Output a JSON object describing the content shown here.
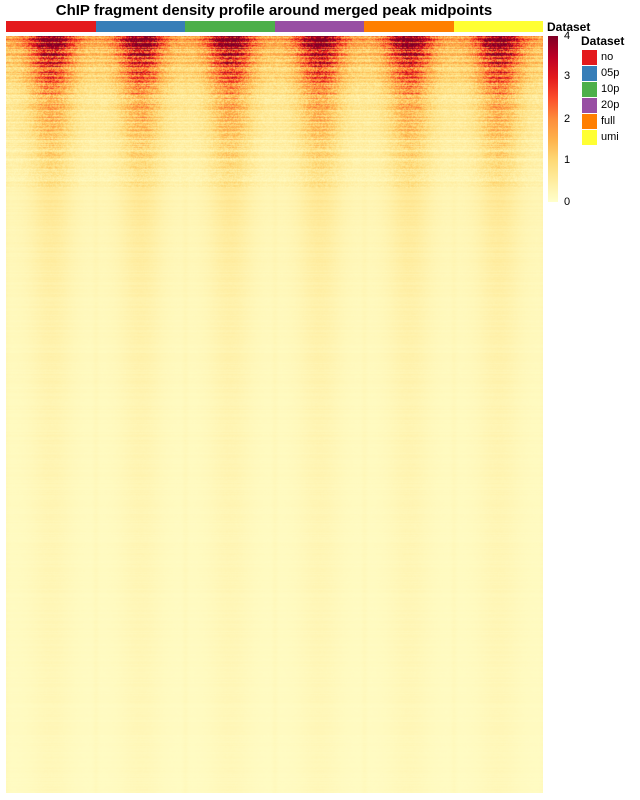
{
  "title": "ChIP fragment density profile around merged peak midpoints",
  "annotation_label": "Dataset",
  "colorbar": {
    "colors": [
      "#ffffcc",
      "#ffeda0",
      "#fed976",
      "#feb24c",
      "#fd8d3c",
      "#fc4e2a",
      "#e31a1c",
      "#bd0026",
      "#800026"
    ],
    "ticks": [
      "4",
      "3",
      "2",
      "1",
      "0"
    ]
  },
  "legend": {
    "title": "Dataset",
    "items": [
      {
        "label": "no",
        "color": "#e41a1c"
      },
      {
        "label": "05p",
        "color": "#377eb8"
      },
      {
        "label": "10p",
        "color": "#4daf4a"
      },
      {
        "label": "20p",
        "color": "#984ea3"
      },
      {
        "label": "full",
        "color": "#ff7f00"
      },
      {
        "label": "umi",
        "color": "#ffff33"
      }
    ]
  },
  "chart_data": {
    "type": "heatmap",
    "title": "ChIP fragment density profile around merged peak midpoints",
    "column_groups": [
      "no",
      "05p",
      "10p",
      "20p",
      "full",
      "umi"
    ],
    "value_range": [
      0,
      4
    ],
    "description_values": {
      "peak_center_max_top_rows": 4,
      "flank_value_typical": 0.3
    }
  }
}
